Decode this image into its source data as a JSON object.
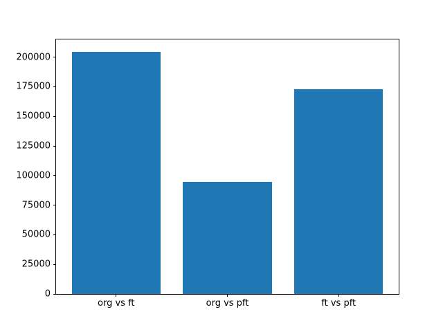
{
  "chart_data": {
    "type": "bar",
    "categories": [
      "org vs ft",
      "org vs pft",
      "ft vs pft"
    ],
    "values": [
      204700,
      94700,
      173200
    ],
    "title": "",
    "xlabel": "",
    "ylabel": "",
    "ylim": [
      0,
      215000
    ],
    "xlim": [
      -0.54,
      2.54
    ],
    "yticks": [
      0,
      25000,
      50000,
      75000,
      100000,
      125000,
      150000,
      175000,
      200000
    ],
    "ytick_labels": [
      "0",
      "25000",
      "50000",
      "75000",
      "100000",
      "125000",
      "150000",
      "175000",
      "200000"
    ],
    "bar_width": 0.8,
    "bar_color": "#1f77b4",
    "frame_color": "#000000",
    "background_color": "#ffffff",
    "grid": false,
    "legend": null
  }
}
